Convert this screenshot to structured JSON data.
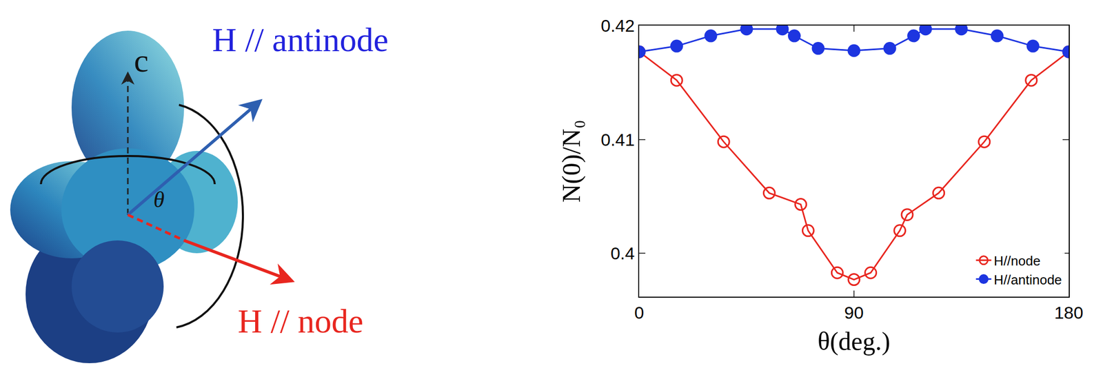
{
  "diagram": {
    "axis_label": "c",
    "angle_label": "θ",
    "antinode_label": "H // antinode",
    "node_label": "H // node"
  },
  "chart_data": {
    "type": "line",
    "x_label": "θ(deg.)",
    "y_label": "N(0)/N₀",
    "xlim": [
      0,
      180
    ],
    "xticks": [
      0,
      90,
      180
    ],
    "ylim": [
      0.3962,
      0.42
    ],
    "yticks": [
      0.4,
      0.41,
      0.42
    ],
    "grid": false,
    "legend": "lower right",
    "series": [
      {
        "name": "H//node",
        "color": "#e8261f",
        "marker": "open circle",
        "line_style": "solid",
        "x": [
          0,
          15.7,
          35.4,
          54.5,
          67.7,
          70.8,
          83,
          90,
          97,
          109.2,
          112.3,
          125.5,
          144.6,
          164.3,
          180
        ],
        "values": [
          0.4177,
          0.4152,
          0.4098,
          0.4053,
          0.4043,
          0.402,
          0.3983,
          0.3977,
          0.3983,
          0.402,
          0.4034,
          0.4053,
          0.4098,
          0.4152,
          0.4177
        ]
      },
      {
        "name": "H//antinode",
        "color": "#1d35e0",
        "marker": "filled circle",
        "line_style": "solid",
        "x": [
          0,
          15.7,
          30,
          45,
          60,
          65,
          75,
          90,
          105,
          115,
          120,
          135,
          150,
          165,
          180
        ],
        "values": [
          0.4177,
          0.4182,
          0.4191,
          0.4197,
          0.4197,
          0.4191,
          0.418,
          0.4178,
          0.418,
          0.4191,
          0.4197,
          0.4197,
          0.4191,
          0.4182,
          0.4177
        ]
      }
    ]
  }
}
